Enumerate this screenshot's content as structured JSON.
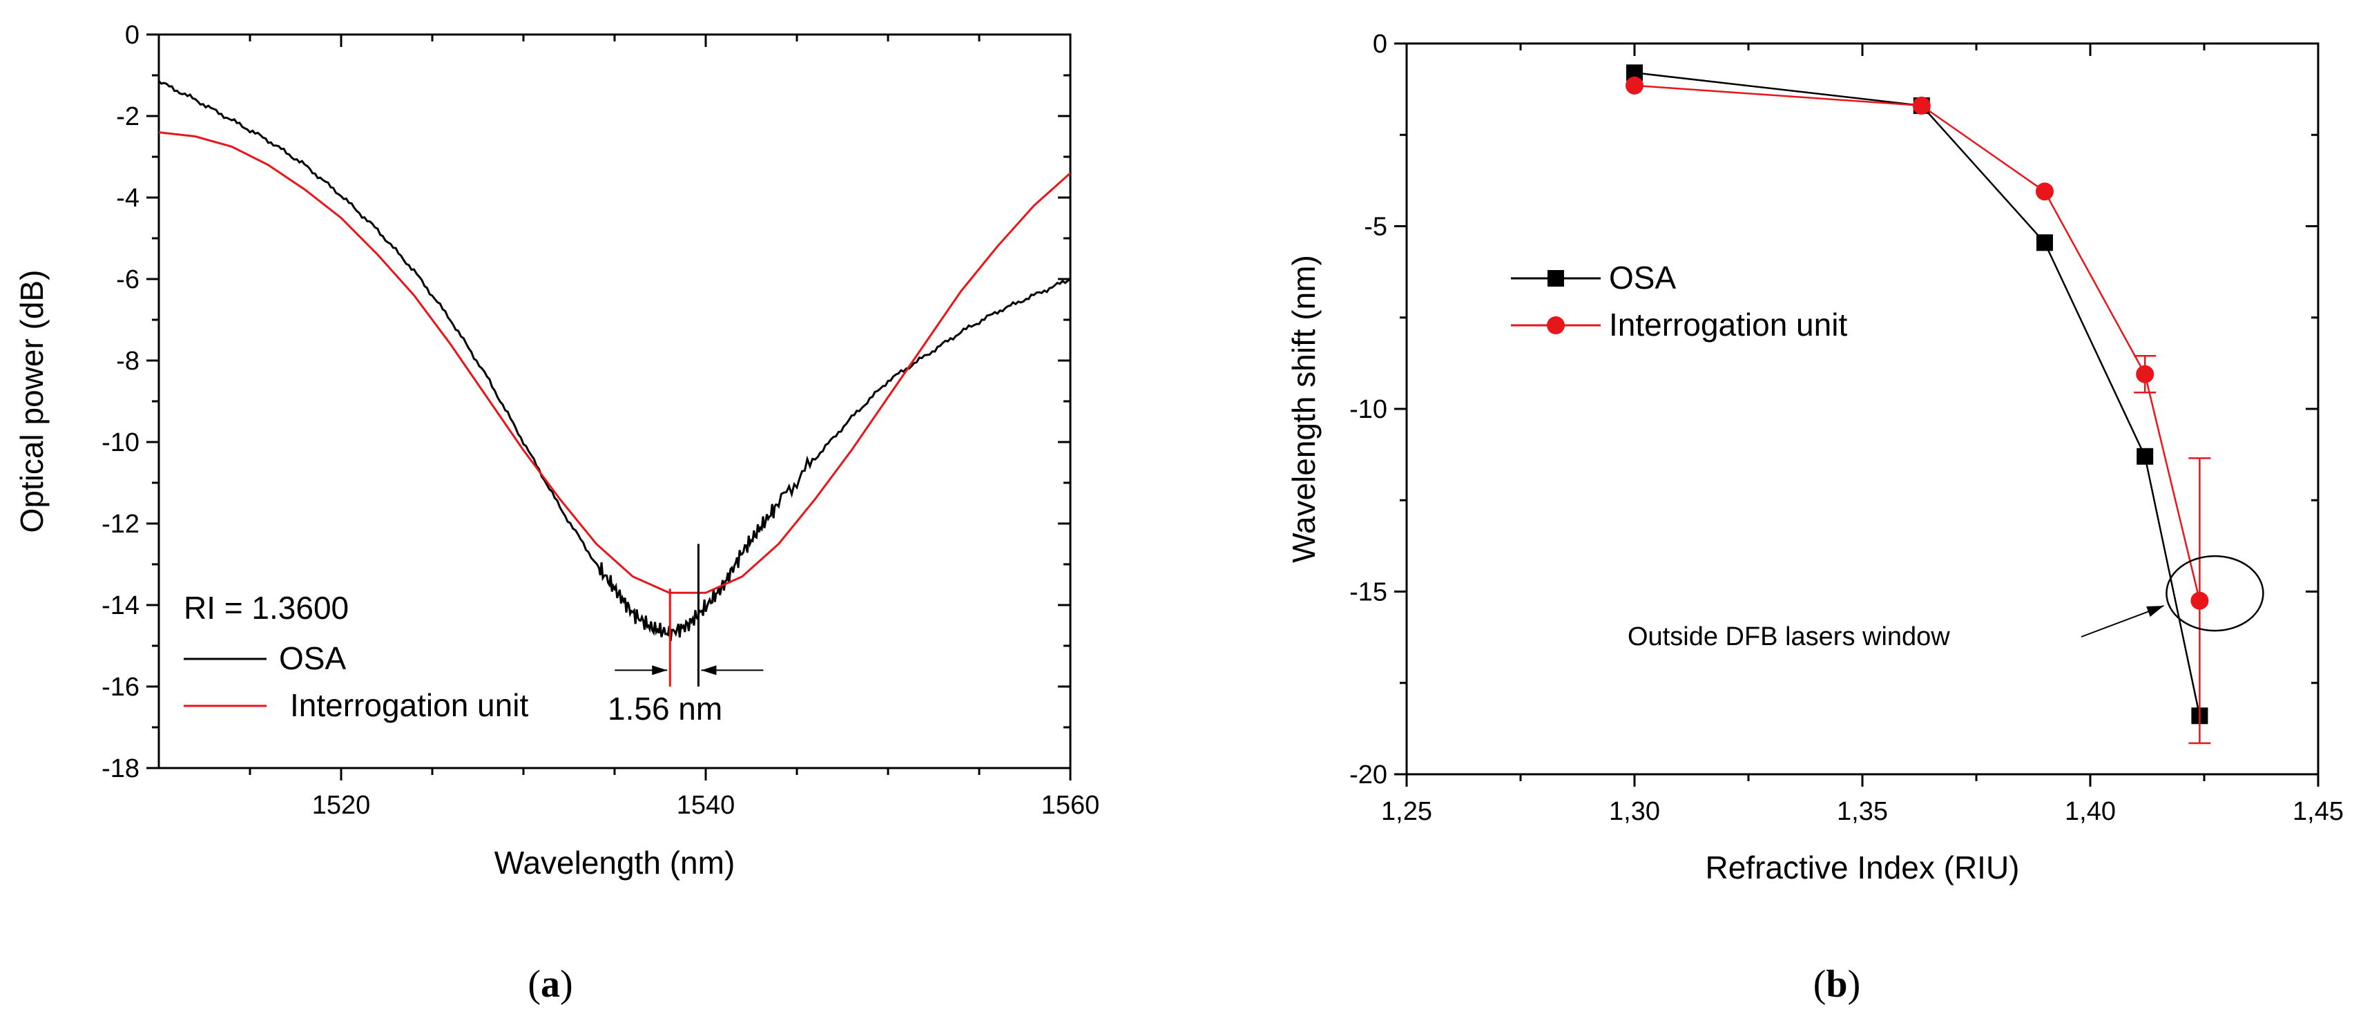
{
  "colors": {
    "osa": "#000000",
    "interrogation": "#e8151b"
  },
  "chart_data": [
    {
      "panel": "(a)",
      "panel_letter": "a",
      "type": "line",
      "title": "",
      "xlabel": "Wavelength (nm)",
      "ylabel": "Optical power (dB)",
      "xlim": [
        1510,
        1560
      ],
      "ylim": [
        -18,
        0
      ],
      "xticks": [
        1520,
        1540,
        1560
      ],
      "yticks": [
        0,
        -2,
        -4,
        -6,
        -8,
        -10,
        -12,
        -14,
        -16,
        -18
      ],
      "ytick_labels": [
        "0",
        "-2",
        "-4",
        "-6",
        "-8",
        "-10",
        "-12",
        "-14",
        "-16",
        "-18"
      ],
      "legend": {
        "placement": "bottom-left",
        "header": "RI = 1.3600",
        "entries": [
          "OSA",
          "Interrogation unit"
        ]
      },
      "annotation": {
        "text": "1.56 nm",
        "x_osa_min": 1539.6,
        "x_iu_min": 1538.04
      },
      "series": [
        {
          "name": "OSA",
          "color": "#000000",
          "x": [
            1510,
            1512,
            1514,
            1516,
            1518,
            1520,
            1522,
            1524,
            1526,
            1528,
            1530,
            1532,
            1534,
            1535,
            1536,
            1537,
            1538,
            1539,
            1540,
            1541,
            1542,
            1543,
            1544,
            1546,
            1548,
            1550,
            1552,
            1554,
            1556,
            1558,
            1560
          ],
          "y": [
            -1.15,
            -1.6,
            -2.1,
            -2.6,
            -3.2,
            -3.95,
            -4.8,
            -5.8,
            -7.0,
            -8.4,
            -10.0,
            -11.6,
            -13.0,
            -13.6,
            -14.2,
            -14.55,
            -14.7,
            -14.5,
            -14.05,
            -13.5,
            -12.7,
            -12.1,
            -11.5,
            -10.4,
            -9.4,
            -8.5,
            -7.9,
            -7.3,
            -6.8,
            -6.4,
            -6.0
          ]
        },
        {
          "name": "Interrogation unit",
          "color": "#e8151b",
          "x": [
            1510,
            1512,
            1514,
            1516,
            1518,
            1520,
            1522,
            1524,
            1526,
            1528,
            1530,
            1532,
            1534,
            1536,
            1538,
            1540,
            1542,
            1544,
            1546,
            1548,
            1550,
            1552,
            1554,
            1556,
            1558,
            1560
          ],
          "y": [
            -2.4,
            -2.5,
            -2.75,
            -3.2,
            -3.8,
            -4.5,
            -5.4,
            -6.4,
            -7.6,
            -8.9,
            -10.2,
            -11.4,
            -12.5,
            -13.3,
            -13.7,
            -13.7,
            -13.3,
            -12.5,
            -11.4,
            -10.2,
            -8.9,
            -7.6,
            -6.3,
            -5.2,
            -4.2,
            -3.4
          ]
        }
      ]
    },
    {
      "panel": "(b)",
      "panel_letter": "b",
      "type": "line",
      "title": "",
      "xlabel": "Refractive Index (RIU)",
      "ylabel": "Wavelength shift (nm)",
      "xlim": [
        1.25,
        1.45
      ],
      "ylim": [
        -20,
        0
      ],
      "xticks": [
        1.25,
        1.3,
        1.35,
        1.4,
        1.45
      ],
      "xtick_labels": [
        "1,25",
        "1,30",
        "1,35",
        "1,40",
        "1,45"
      ],
      "yticks": [
        0,
        -5,
        -10,
        -15,
        -20
      ],
      "ytick_labels": [
        "0",
        "-5",
        "-10",
        "-15",
        "-20"
      ],
      "legend": {
        "placement": "top-left",
        "entries": [
          "OSA",
          "Interrogation unit"
        ]
      },
      "annotation": {
        "text": "Outside DFB lasers window",
        "target_x": 1.424,
        "target_y": -15.2
      },
      "series": [
        {
          "name": "OSA",
          "color": "#000000",
          "marker": "square",
          "x": [
            1.3,
            1.363,
            1.39,
            1.412,
            1.424
          ],
          "y": [
            -0.8,
            -1.7,
            -5.45,
            -11.3,
            -18.4
          ]
        },
        {
          "name": "Interrogation unit",
          "color": "#e8151b",
          "marker": "circle",
          "x": [
            1.3,
            1.363,
            1.39,
            1.412,
            1.424
          ],
          "y": [
            -1.15,
            -1.7,
            -4.05,
            -9.05,
            -15.25
          ],
          "yerr": [
            0,
            0,
            0,
            0.5,
            3.9
          ]
        }
      ]
    }
  ]
}
